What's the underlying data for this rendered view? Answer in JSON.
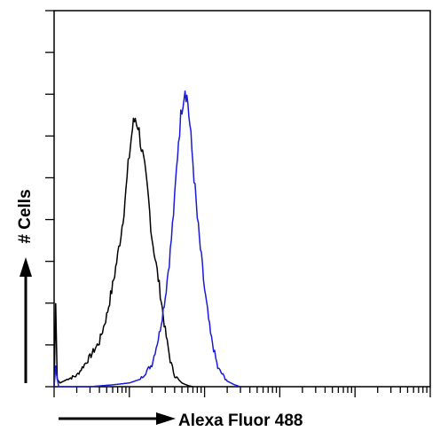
{
  "chart_data": {
    "type": "line",
    "title": "",
    "xlabel": "Alexa Fluor 488",
    "ylabel": "# Cells",
    "x_scale": "log",
    "xlim": [
      1,
      100000
    ],
    "ylim": [
      0,
      1
    ],
    "grid": false,
    "legend": "none",
    "series": [
      {
        "color": "#000000",
        "x": [
          1,
          1.05,
          1.1,
          1.2,
          1.5,
          2,
          3,
          4,
          5,
          6,
          7,
          8,
          9,
          10,
          11,
          12,
          13,
          14,
          16,
          18,
          20,
          25,
          30,
          35,
          40,
          50,
          60,
          70
        ],
        "values": [
          0,
          0.22,
          0.02,
          0.01,
          0.02,
          0.03,
          0.08,
          0.12,
          0.19,
          0.27,
          0.35,
          0.43,
          0.52,
          0.62,
          0.69,
          0.72,
          0.7,
          0.66,
          0.58,
          0.5,
          0.4,
          0.27,
          0.15,
          0.07,
          0.03,
          0.01,
          0.003,
          0
        ]
      },
      {
        "color": "#1a1adb",
        "x": [
          1,
          1.05,
          1.15,
          3,
          6,
          10,
          14,
          20,
          25,
          30,
          35,
          40,
          45,
          50,
          55,
          60,
          70,
          80,
          100,
          120,
          150,
          200,
          250,
          300
        ],
        "values": [
          0,
          0.05,
          0,
          0,
          0.005,
          0.01,
          0.02,
          0.06,
          0.14,
          0.24,
          0.36,
          0.5,
          0.66,
          0.75,
          0.8,
          0.76,
          0.6,
          0.45,
          0.26,
          0.14,
          0.05,
          0.015,
          0.005,
          0
        ]
      }
    ]
  }
}
